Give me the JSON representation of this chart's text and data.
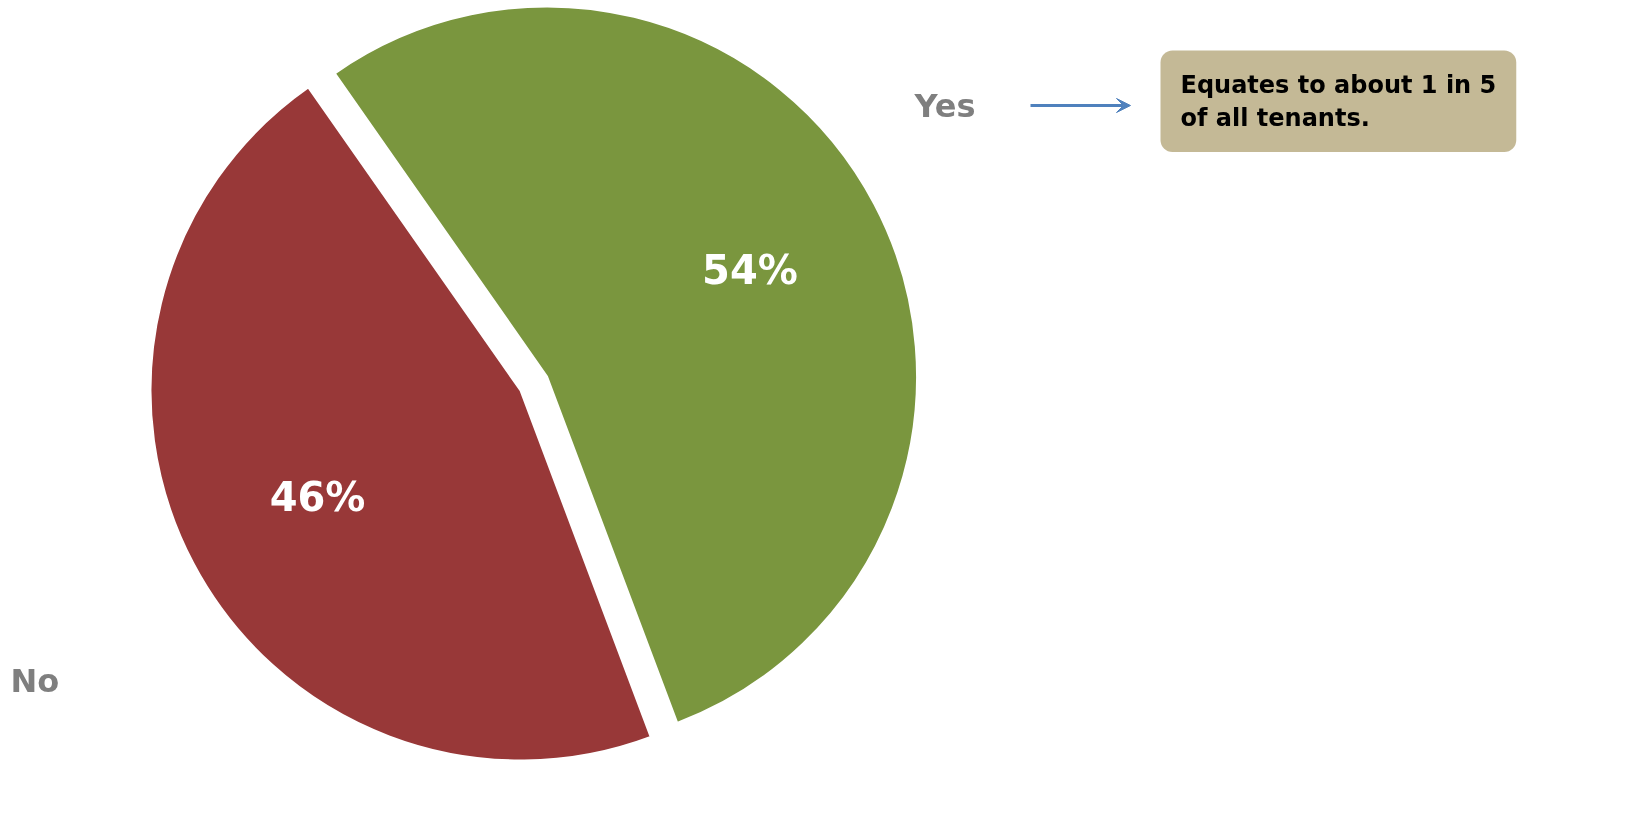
{
  "chart_data": {
    "type": "pie",
    "categories": [
      "Yes",
      "No"
    ],
    "values": [
      54,
      46
    ],
    "colors": [
      "#7a963e",
      "#983838"
    ],
    "value_labels": [
      "54%",
      "46%"
    ],
    "annotations": [
      "Equates to about 1 in 5 of all tenants."
    ]
  }
}
